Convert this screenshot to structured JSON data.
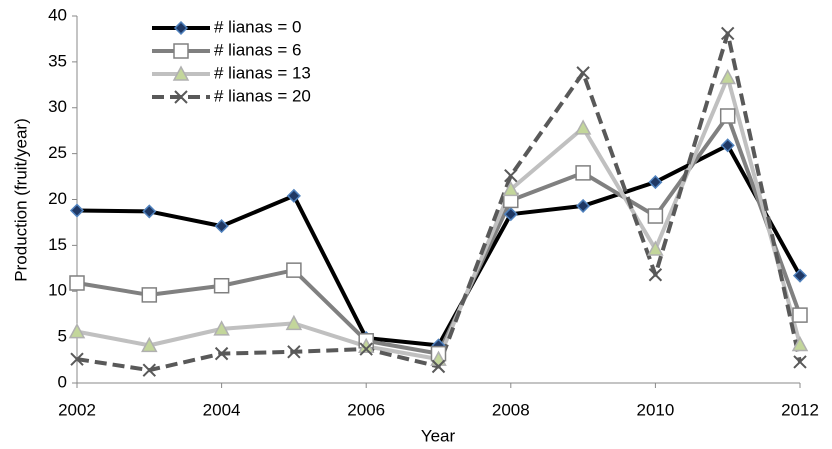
{
  "chart_data": {
    "type": "line",
    "x_label": "Year",
    "y_label": "Production (fruit/year)",
    "x": [
      2002,
      2003,
      2004,
      2005,
      2006,
      2007,
      2008,
      2009,
      2010,
      2011,
      2012
    ],
    "series": [
      {
        "name": "# lianas = 0",
        "color": "#000000",
        "marker": "diamond",
        "marker_fill": "#1f3864",
        "marker_edge": "#4f81bd",
        "dash": false,
        "values": [
          18.8,
          18.7,
          17.1,
          20.4,
          4.9,
          4.1,
          18.4,
          19.3,
          21.9,
          25.9,
          11.7
        ]
      },
      {
        "name": "# lianas = 6",
        "color": "#808080",
        "marker": "square",
        "marker_fill": "#ffffff",
        "marker_edge": "#808080",
        "dash": false,
        "values": [
          10.9,
          9.6,
          10.6,
          12.3,
          4.6,
          3.2,
          19.9,
          22.9,
          18.2,
          29.1,
          7.4
        ]
      },
      {
        "name": "# lianas = 13",
        "color": "#c0c0c0",
        "marker": "triangle",
        "marker_fill": "#c3d69b",
        "marker_edge": "#b0b0b0",
        "dash": false,
        "values": [
          5.6,
          4.1,
          5.9,
          6.5,
          4.0,
          2.6,
          21.1,
          27.8,
          14.6,
          33.3,
          4.2
        ]
      },
      {
        "name": "# lianas = 20",
        "color": "#595959",
        "marker": "x",
        "marker_fill": "none",
        "marker_edge": "#595959",
        "dash": true,
        "values": [
          2.6,
          1.4,
          3.2,
          3.4,
          3.7,
          1.8,
          22.6,
          33.8,
          11.8,
          38.1,
          2.3
        ]
      }
    ],
    "xlim": [
      2002,
      2012
    ],
    "xticks": [
      2002,
      2004,
      2006,
      2008,
      2010,
      2012
    ],
    "ylim": [
      0,
      40
    ],
    "yticks": [
      0,
      5,
      10,
      15,
      20,
      25,
      30,
      35,
      40
    ],
    "grid": false,
    "legend": "upper-left"
  }
}
